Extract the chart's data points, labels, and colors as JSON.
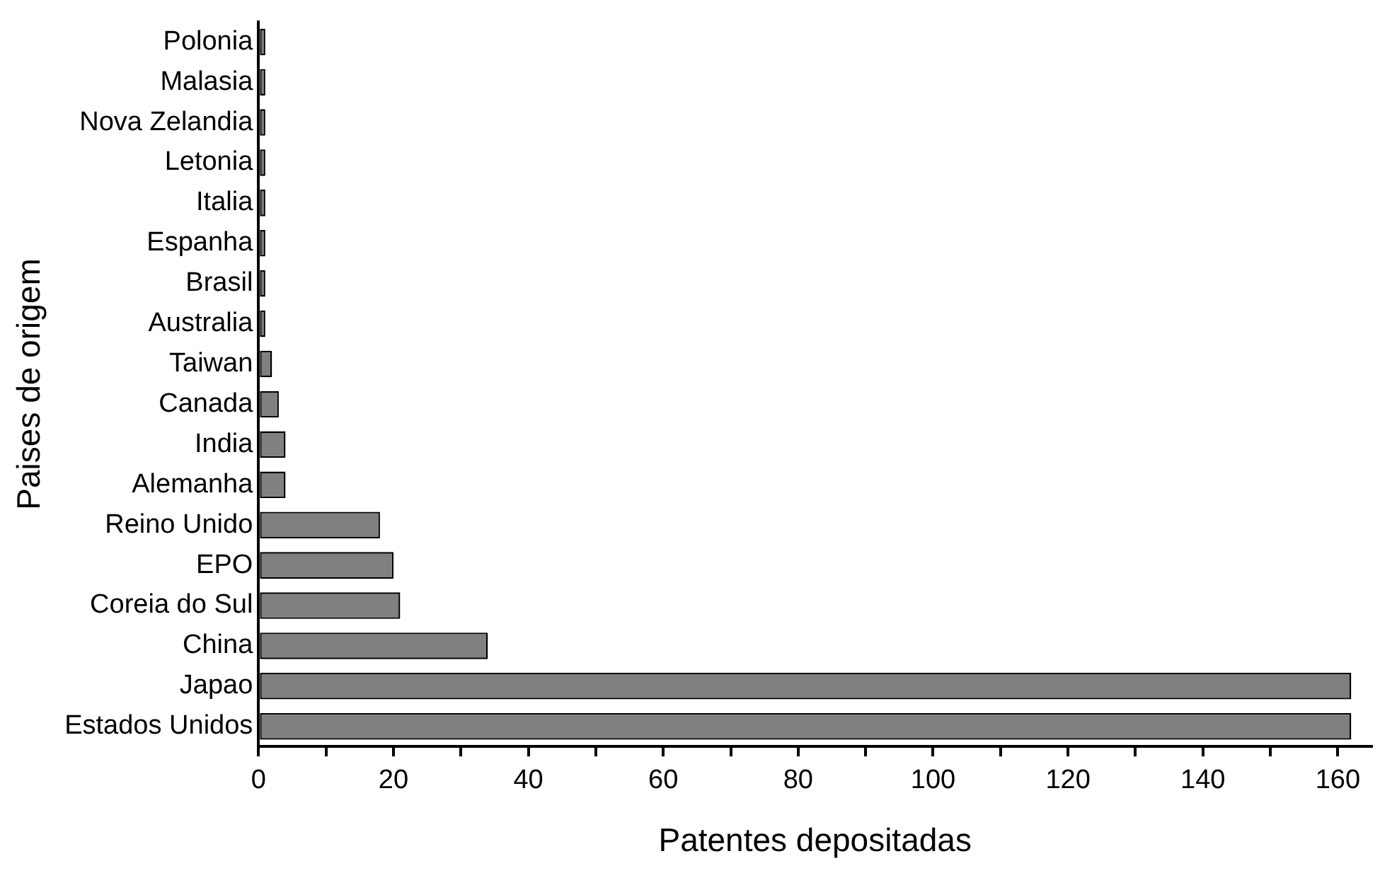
{
  "chart_data": {
    "type": "bar",
    "orientation": "horizontal",
    "xlabel": "Patentes depositadas",
    "ylabel": "Paises de origem",
    "categories": [
      "Polonia",
      "Malasia",
      "Nova Zelandia",
      "Letonia",
      "Italia",
      "Espanha",
      "Brasil",
      "Australia",
      "Taiwan",
      "Canada",
      "India",
      "Alemanha",
      "Reino Unido",
      "EPO",
      "Coreia do Sul",
      "China",
      "Japao",
      "Estados Unidos"
    ],
    "values": [
      1,
      1,
      1,
      1,
      1,
      1,
      1,
      1,
      2,
      3,
      4,
      4,
      18,
      20,
      21,
      34,
      162,
      162
    ],
    "color": "#808080",
    "xlim": [
      0,
      165
    ],
    "xticks": [
      0,
      {
        "value": 10,
        "label": null
      },
      20,
      {
        "value": 30,
        "label": null
      },
      40,
      {
        "value": 50,
        "label": null
      },
      60,
      {
        "value": 70,
        "label": null
      },
      80,
      {
        "value": 90,
        "label": null
      },
      100,
      {
        "value": 110,
        "label": null
      },
      120,
      {
        "value": 130,
        "label": null
      },
      140,
      {
        "value": 150,
        "label": null
      },
      160
    ],
    "grid": false,
    "legend": false
  }
}
